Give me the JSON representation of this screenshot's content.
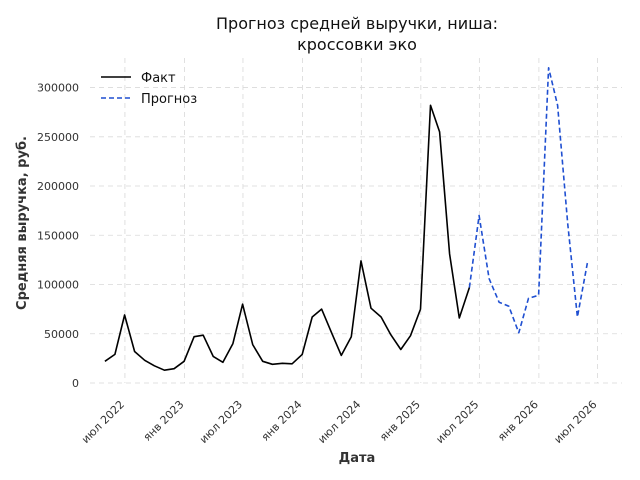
{
  "chart_data": {
    "type": "line",
    "title_lines": [
      "Прогноз средней выручки, ниша:",
      "кроссовки эко"
    ],
    "xlabel": "Дата",
    "ylabel": "Средняя выручка, руб.",
    "ylim": [
      0,
      330000
    ],
    "yticks": [
      0,
      50000,
      100000,
      150000,
      200000,
      250000,
      300000
    ],
    "xlim": [
      "2022-03-15",
      "2026-09-15"
    ],
    "xticks": [
      {
        "date": "2022-07-01",
        "label": "июл 2022"
      },
      {
        "date": "2023-01-01",
        "label": "янв 2023"
      },
      {
        "date": "2023-07-01",
        "label": "июл 2023"
      },
      {
        "date": "2024-01-01",
        "label": "янв 2024"
      },
      {
        "date": "2024-07-01",
        "label": "июл 2024"
      },
      {
        "date": "2025-01-01",
        "label": "янв 2025"
      },
      {
        "date": "2025-07-01",
        "label": "июл 2025"
      },
      {
        "date": "2026-01-01",
        "label": "янв 2026"
      },
      {
        "date": "2026-07-01",
        "label": "июл 2026"
      }
    ],
    "grid": true,
    "legend_position": "top-left",
    "series": [
      {
        "name": "Факт",
        "color": "#000000",
        "style": "solid",
        "points": [
          [
            "2022-04-30",
            22000
          ],
          [
            "2022-05-31",
            29000
          ],
          [
            "2022-06-30",
            69000
          ],
          [
            "2022-07-31",
            32000
          ],
          [
            "2022-08-31",
            23000
          ],
          [
            "2022-09-30",
            17500
          ],
          [
            "2022-10-31",
            13000
          ],
          [
            "2022-11-30",
            14500
          ],
          [
            "2022-12-31",
            22000
          ],
          [
            "2023-01-31",
            47000
          ],
          [
            "2023-02-28",
            48500
          ],
          [
            "2023-03-31",
            27000
          ],
          [
            "2023-04-30",
            21000
          ],
          [
            "2023-05-31",
            40000
          ],
          [
            "2023-06-30",
            80000
          ],
          [
            "2023-07-31",
            39000
          ],
          [
            "2023-08-31",
            22000
          ],
          [
            "2023-09-30",
            19000
          ],
          [
            "2023-10-31",
            20000
          ],
          [
            "2023-11-30",
            19500
          ],
          [
            "2023-12-31",
            29000
          ],
          [
            "2024-01-31",
            67000
          ],
          [
            "2024-02-29",
            75000
          ],
          [
            "2024-03-31",
            51000
          ],
          [
            "2024-04-30",
            28000
          ],
          [
            "2024-05-31",
            47000
          ],
          [
            "2024-06-30",
            124000
          ],
          [
            "2024-07-31",
            76000
          ],
          [
            "2024-08-31",
            67000
          ],
          [
            "2024-09-30",
            49000
          ],
          [
            "2024-10-31",
            34000
          ],
          [
            "2024-11-30",
            48000
          ],
          [
            "2024-12-31",
            75000
          ],
          [
            "2025-01-31",
            282000
          ],
          [
            "2025-02-28",
            255000
          ],
          [
            "2025-03-31",
            131000
          ],
          [
            "2025-04-30",
            66000
          ],
          [
            "2025-05-31",
            97000
          ]
        ]
      },
      {
        "name": "Прогноз",
        "color": "#1f4fd1",
        "style": "dashed",
        "points": [
          [
            "2025-05-31",
            97000
          ],
          [
            "2025-06-30",
            170000
          ],
          [
            "2025-07-31",
            106000
          ],
          [
            "2025-08-31",
            82000
          ],
          [
            "2025-09-30",
            78000
          ],
          [
            "2025-10-31",
            51000
          ],
          [
            "2025-11-30",
            86000
          ],
          [
            "2025-12-31",
            89000
          ],
          [
            "2026-01-31",
            320000
          ],
          [
            "2026-02-28",
            282000
          ],
          [
            "2026-03-31",
            162000
          ],
          [
            "2026-04-30",
            67000
          ],
          [
            "2026-05-31",
            122000
          ]
        ]
      }
    ]
  }
}
